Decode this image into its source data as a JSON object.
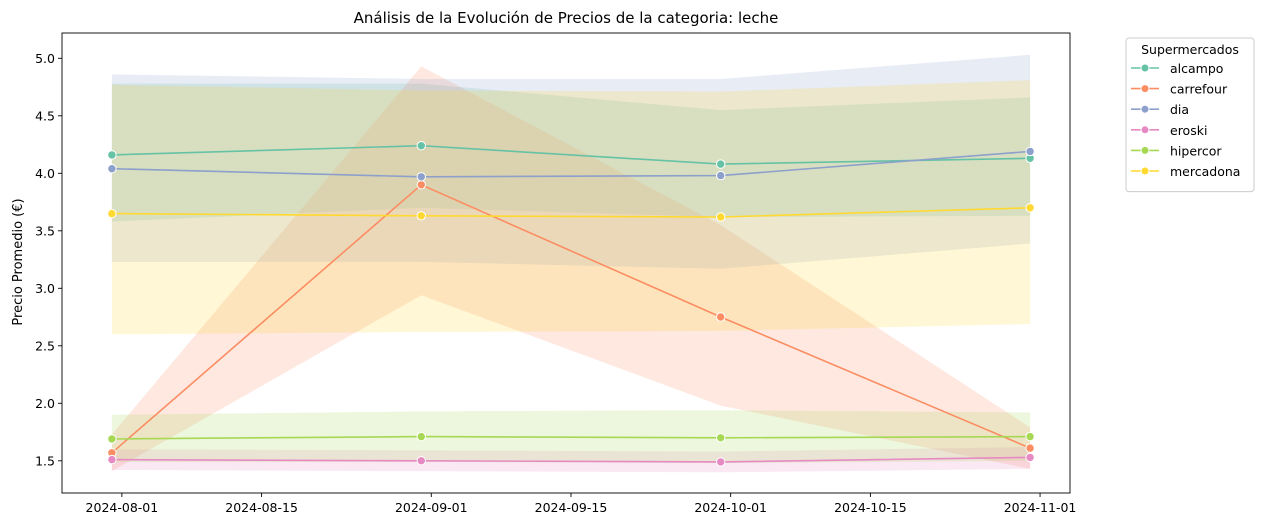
{
  "chart_data": {
    "type": "line",
    "title": "Análisis de la Evolución de Precios de la categoria: leche",
    "xlabel": "",
    "ylabel": "Precio Promedio (€)",
    "x_dates": [
      "2024-07-31",
      "2024-08-31",
      "2024-09-30",
      "2024-10-31"
    ],
    "x_ticks": [
      "2024-08-01",
      "2024-08-15",
      "2024-09-01",
      "2024-09-15",
      "2024-10-01",
      "2024-10-15",
      "2024-11-01"
    ],
    "xlim": [
      "2024-07-26",
      "2024-11-04"
    ],
    "y_ticks": [
      "1.5",
      "2.0",
      "2.5",
      "3.0",
      "3.5",
      "4.0",
      "4.5",
      "5.0"
    ],
    "ylim": [
      1.22,
      5.22
    ],
    "grid": false,
    "legend": {
      "title": "Supermercados",
      "placement": "outside-right"
    },
    "series": [
      {
        "name": "alcampo",
        "color": "#66c2a5",
        "values": [
          4.16,
          4.24,
          4.08,
          4.13
        ],
        "ci_low": [
          3.58,
          3.7,
          3.62,
          3.63
        ],
        "ci_high": [
          4.78,
          4.78,
          4.55,
          4.66
        ]
      },
      {
        "name": "carrefour",
        "color": "#fc8d62",
        "values": [
          1.57,
          3.9,
          2.75,
          1.61
        ],
        "ci_low": [
          1.41,
          2.94,
          1.98,
          1.43
        ],
        "ci_high": [
          1.73,
          4.93,
          3.55,
          1.79
        ]
      },
      {
        "name": "dia",
        "color": "#8da0cb",
        "values": [
          4.04,
          3.97,
          3.98,
          4.19
        ],
        "ci_low": [
          3.23,
          3.23,
          3.17,
          3.39
        ],
        "ci_high": [
          4.86,
          4.82,
          4.82,
          5.03
        ]
      },
      {
        "name": "eroski",
        "color": "#e78ac3",
        "values": [
          1.51,
          1.5,
          1.49,
          1.53
        ],
        "ci_low": [
          1.42,
          1.41,
          1.4,
          1.43
        ],
        "ci_high": [
          1.6,
          1.59,
          1.58,
          1.62
        ]
      },
      {
        "name": "hipercor",
        "color": "#a6d854",
        "values": [
          1.69,
          1.71,
          1.7,
          1.71
        ],
        "ci_low": [
          1.49,
          1.49,
          1.48,
          1.5
        ],
        "ci_high": [
          1.9,
          1.93,
          1.94,
          1.92
        ]
      },
      {
        "name": "mercadona",
        "color": "#ffd92f",
        "values": [
          3.65,
          3.63,
          3.62,
          3.7
        ],
        "ci_low": [
          2.6,
          2.62,
          2.63,
          2.69
        ],
        "ci_high": [
          4.77,
          4.72,
          4.71,
          4.81
        ]
      }
    ]
  }
}
